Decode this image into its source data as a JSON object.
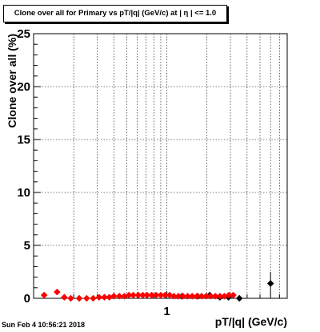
{
  "title": "Clone  over all for Primary vs pT/|q| (GeV/c) at |  η | <= 1.0",
  "timestamp": "Sun Feb  4 10:56:21 2018",
  "chart_data": {
    "type": "scatter",
    "title": "Clone  over all for Primary vs pT/|q| (GeV/c) at |  η | <= 1.0",
    "xlabel": "pT/|q| (GeV/c)",
    "ylabel": "Clone  over all (%)",
    "x_scale": "log",
    "xlim": [
      0.1,
      8
    ],
    "ylim": [
      0,
      25
    ],
    "x_tick_labels": [
      {
        "value": 1,
        "label": "1"
      }
    ],
    "y_tick_labels": [
      {
        "value": 0,
        "label": "0"
      },
      {
        "value": 5,
        "label": "5"
      },
      {
        "value": 10,
        "label": "10"
      },
      {
        "value": 15,
        "label": "15"
      },
      {
        "value": 20,
        "label": "20"
      },
      {
        "value": 25,
        "label": "25"
      }
    ],
    "grid": true,
    "series": [
      {
        "color": "#000000",
        "marker": "diamond",
        "points": [
          {
            "x": 1.3,
            "y": 0.2
          },
          {
            "x": 1.7,
            "y": 0.2
          },
          {
            "x": 2.1,
            "y": 0.3
          },
          {
            "x": 2.5,
            "y": 0.1
          },
          {
            "x": 2.9,
            "y": 0.1
          },
          {
            "x": 3.5,
            "y": 0.0
          },
          {
            "x": 6.0,
            "y": 1.4,
            "err": 1.1
          }
        ]
      },
      {
        "color": "#ff0000",
        "marker": "diamond",
        "points": [
          {
            "x": 0.12,
            "y": 0.3
          },
          {
            "x": 0.15,
            "y": 0.6
          },
          {
            "x": 0.17,
            "y": 0.1
          },
          {
            "x": 0.19,
            "y": 0.0
          },
          {
            "x": 0.22,
            "y": 0.0
          },
          {
            "x": 0.25,
            "y": 0.0
          },
          {
            "x": 0.28,
            "y": 0.0
          },
          {
            "x": 0.31,
            "y": 0.1
          },
          {
            "x": 0.34,
            "y": 0.1
          },
          {
            "x": 0.37,
            "y": 0.1
          },
          {
            "x": 0.4,
            "y": 0.2
          },
          {
            "x": 0.44,
            "y": 0.2
          },
          {
            "x": 0.48,
            "y": 0.2
          },
          {
            "x": 0.52,
            "y": 0.3
          },
          {
            "x": 0.56,
            "y": 0.3
          },
          {
            "x": 0.61,
            "y": 0.3
          },
          {
            "x": 0.66,
            "y": 0.3
          },
          {
            "x": 0.71,
            "y": 0.3
          },
          {
            "x": 0.77,
            "y": 0.3
          },
          {
            "x": 0.83,
            "y": 0.3
          },
          {
            "x": 0.9,
            "y": 0.3
          },
          {
            "x": 0.97,
            "y": 0.3
          },
          {
            "x": 1.05,
            "y": 0.3
          },
          {
            "x": 1.13,
            "y": 0.2
          },
          {
            "x": 1.22,
            "y": 0.2
          },
          {
            "x": 1.32,
            "y": 0.2
          },
          {
            "x": 1.43,
            "y": 0.2
          },
          {
            "x": 1.55,
            "y": 0.2
          },
          {
            "x": 1.68,
            "y": 0.2
          },
          {
            "x": 1.82,
            "y": 0.2
          },
          {
            "x": 1.97,
            "y": 0.2
          },
          {
            "x": 2.13,
            "y": 0.2
          },
          {
            "x": 2.31,
            "y": 0.2
          },
          {
            "x": 2.5,
            "y": 0.2
          },
          {
            "x": 2.7,
            "y": 0.2
          },
          {
            "x": 2.92,
            "y": 0.3
          },
          {
            "x": 3.15,
            "y": 0.3
          }
        ]
      }
    ]
  }
}
